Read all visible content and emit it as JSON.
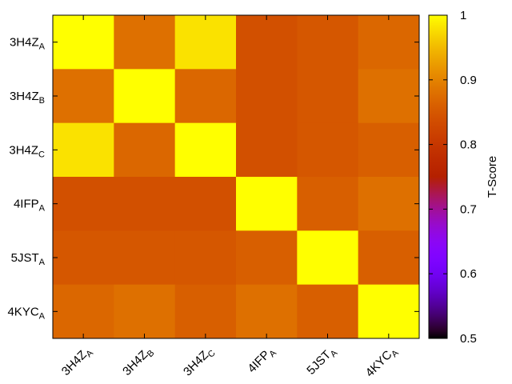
{
  "chart_data": {
    "type": "heatmap",
    "rows": [
      {
        "base": "3H4Z",
        "sub": "A"
      },
      {
        "base": "3H4Z",
        "sub": "B"
      },
      {
        "base": "3H4Z",
        "sub": "C"
      },
      {
        "base": "4IFP",
        "sub": "A"
      },
      {
        "base": "5JST",
        "sub": "A"
      },
      {
        "base": "4KYC",
        "sub": "A"
      }
    ],
    "columns": [
      {
        "base": "3H4Z",
        "sub": "A"
      },
      {
        "base": "3H4Z",
        "sub": "B"
      },
      {
        "base": "3H4Z",
        "sub": "C"
      },
      {
        "base": "4IFP",
        "sub": "A"
      },
      {
        "base": "5JST",
        "sub": "A"
      },
      {
        "base": "4KYC",
        "sub": "A"
      }
    ],
    "values": [
      [
        1.0,
        0.88,
        0.98,
        0.84,
        0.85,
        0.87
      ],
      [
        0.88,
        1.0,
        0.87,
        0.84,
        0.85,
        0.88
      ],
      [
        0.98,
        0.87,
        1.0,
        0.84,
        0.85,
        0.86
      ],
      [
        0.84,
        0.84,
        0.84,
        1.0,
        0.86,
        0.88
      ],
      [
        0.85,
        0.85,
        0.85,
        0.86,
        1.0,
        0.86
      ],
      [
        0.87,
        0.88,
        0.86,
        0.88,
        0.86,
        1.0
      ]
    ],
    "colorbar": {
      "label": "T-Score",
      "range": [
        0.5,
        1.0
      ],
      "ticks": [
        "0.5",
        "0.6",
        "0.7",
        "0.8",
        "0.9",
        "1"
      ],
      "palette": "gnuplot black-purple-red-orange-yellow"
    }
  }
}
